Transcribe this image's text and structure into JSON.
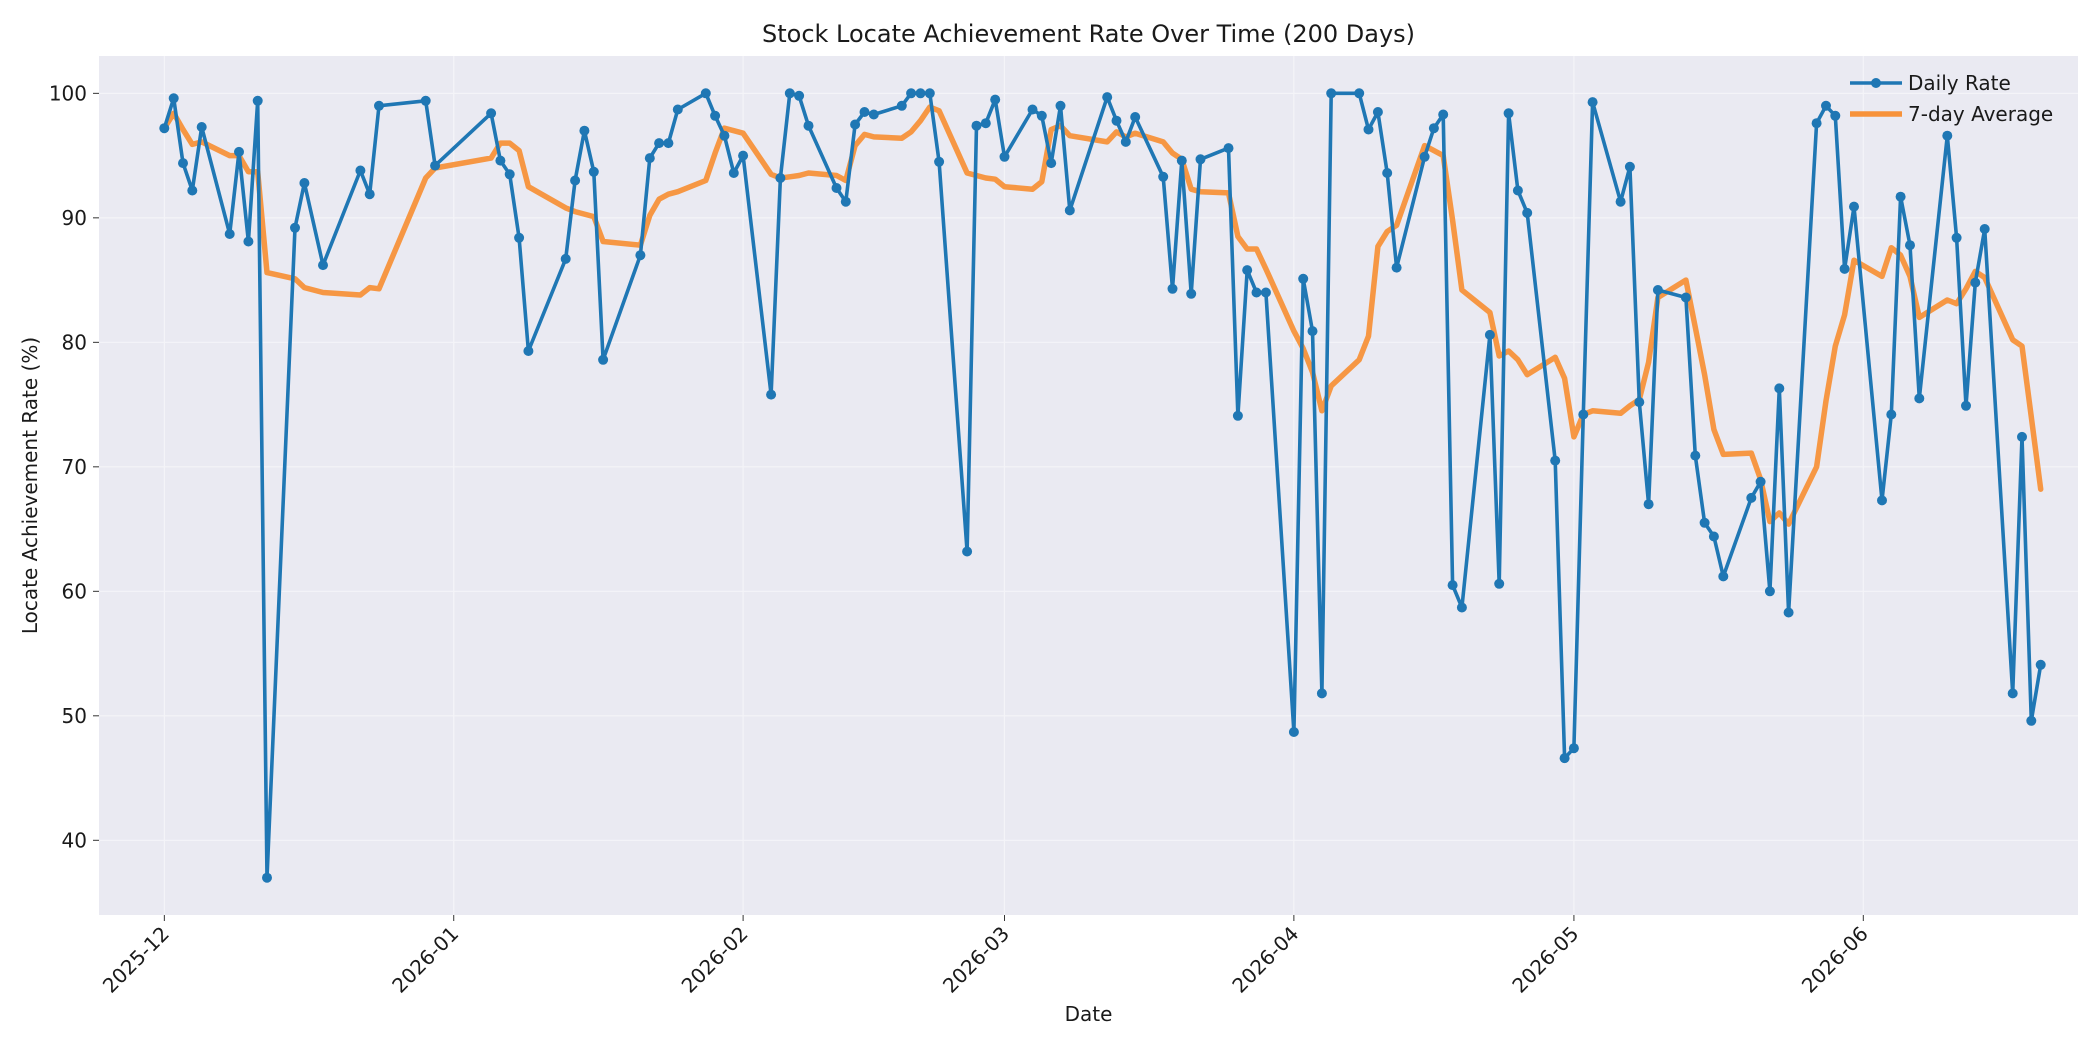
{
  "chart_data": {
    "type": "line",
    "title": "Stock Locate Achievement Rate Over Time (200 Days)",
    "xlabel": "Date",
    "ylabel": "Locate Achievement Rate (%)",
    "ylim": [
      34,
      103
    ],
    "yticks": [
      40,
      50,
      60,
      70,
      80,
      90,
      100
    ],
    "xlim": [
      "2025-11-24",
      "2026-06-24"
    ],
    "xticks": [
      {
        "date": "2025-12-01",
        "label": "2025-12"
      },
      {
        "date": "2026-01-01",
        "label": "2026-01"
      },
      {
        "date": "2026-02-01",
        "label": "2026-02"
      },
      {
        "date": "2026-03-01",
        "label": "2026-03"
      },
      {
        "date": "2026-04-01",
        "label": "2026-04"
      },
      {
        "date": "2026-05-01",
        "label": "2026-05"
      },
      {
        "date": "2026-06-01",
        "label": "2026-06"
      }
    ],
    "grid": true,
    "legend_position": "top-right",
    "colors": {
      "background": "#eaeaf2",
      "grid": "#f4f4f8",
      "daily": "#1f77b4",
      "average": "#f7923a"
    },
    "series": [
      {
        "name": "Daily Rate",
        "style": "line-with-markers",
        "points": [
          [
            "2025-12-01",
            97.2
          ],
          [
            "2025-12-02",
            99.6
          ],
          [
            "2025-12-03",
            94.4
          ],
          [
            "2025-12-04",
            92.2
          ],
          [
            "2025-12-05",
            97.3
          ],
          [
            "2025-12-08",
            88.7
          ],
          [
            "2025-12-09",
            95.3
          ],
          [
            "2025-12-10",
            88.1
          ],
          [
            "2025-12-11",
            99.4
          ],
          [
            "2025-12-12",
            37.0
          ],
          [
            "2025-12-15",
            89.2
          ],
          [
            "2025-12-16",
            92.8
          ],
          [
            "2025-12-18",
            86.2
          ],
          [
            "2025-12-22",
            93.8
          ],
          [
            "2025-12-23",
            91.9
          ],
          [
            "2025-12-24",
            99.0
          ],
          [
            "2025-12-29",
            99.4
          ],
          [
            "2025-12-30",
            94.2
          ],
          [
            "2026-01-05",
            98.4
          ],
          [
            "2026-01-06",
            94.6
          ],
          [
            "2026-01-07",
            93.5
          ],
          [
            "2026-01-08",
            88.4
          ],
          [
            "2026-01-09",
            79.3
          ],
          [
            "2026-01-13",
            86.7
          ],
          [
            "2026-01-14",
            93.0
          ],
          [
            "2026-01-15",
            97.0
          ],
          [
            "2026-01-16",
            93.7
          ],
          [
            "2026-01-17",
            78.6
          ],
          [
            "2026-01-21",
            87.0
          ],
          [
            "2026-01-22",
            94.8
          ],
          [
            "2026-01-23",
            96.0
          ],
          [
            "2026-01-24",
            96.0
          ],
          [
            "2026-01-25",
            98.7
          ],
          [
            "2026-01-28",
            100.0
          ],
          [
            "2026-01-29",
            98.2
          ],
          [
            "2026-01-30",
            96.6
          ],
          [
            "2026-01-31",
            93.6
          ],
          [
            "2026-02-01",
            95.0
          ],
          [
            "2026-02-04",
            75.8
          ],
          [
            "2026-02-05",
            93.2
          ],
          [
            "2026-02-06",
            100.0
          ],
          [
            "2026-02-07",
            99.8
          ],
          [
            "2026-02-08",
            97.4
          ],
          [
            "2026-02-11",
            92.4
          ],
          [
            "2026-02-12",
            91.3
          ],
          [
            "2026-02-13",
            97.5
          ],
          [
            "2026-02-14",
            98.5
          ],
          [
            "2026-02-15",
            98.3
          ],
          [
            "2026-02-18",
            99.0
          ],
          [
            "2026-02-19",
            100.0
          ],
          [
            "2026-02-20",
            100.0
          ],
          [
            "2026-02-21",
            100.0
          ],
          [
            "2026-02-22",
            94.5
          ],
          [
            "2026-02-25",
            63.2
          ],
          [
            "2026-02-26",
            97.4
          ],
          [
            "2026-02-27",
            97.6
          ],
          [
            "2026-02-28",
            99.5
          ],
          [
            "2026-03-01",
            94.9
          ],
          [
            "2026-03-04",
            98.7
          ],
          [
            "2026-03-05",
            98.2
          ],
          [
            "2026-03-06",
            94.4
          ],
          [
            "2026-03-07",
            99.0
          ],
          [
            "2026-03-08",
            90.6
          ],
          [
            "2026-03-12",
            99.7
          ],
          [
            "2026-03-13",
            97.8
          ],
          [
            "2026-03-14",
            96.1
          ],
          [
            "2026-03-15",
            98.1
          ],
          [
            "2026-03-18",
            93.3
          ],
          [
            "2026-03-19",
            84.3
          ],
          [
            "2026-03-20",
            94.6
          ],
          [
            "2026-03-21",
            83.9
          ],
          [
            "2026-03-22",
            94.7
          ],
          [
            "2026-03-25",
            95.6
          ],
          [
            "2026-03-26",
            74.1
          ],
          [
            "2026-03-27",
            85.8
          ],
          [
            "2026-03-28",
            84.0
          ],
          [
            "2026-03-29",
            84.0
          ],
          [
            "2026-04-01",
            48.7
          ],
          [
            "2026-04-02",
            85.1
          ],
          [
            "2026-04-03",
            80.9
          ],
          [
            "2026-04-04",
            51.8
          ],
          [
            "2026-04-05",
            100.0
          ],
          [
            "2026-04-08",
            100.0
          ],
          [
            "2026-04-09",
            97.1
          ],
          [
            "2026-04-10",
            98.5
          ],
          [
            "2026-04-11",
            93.6
          ],
          [
            "2026-04-12",
            86.0
          ],
          [
            "2026-04-15",
            94.9
          ],
          [
            "2026-04-16",
            97.2
          ],
          [
            "2026-04-17",
            98.3
          ],
          [
            "2026-04-18",
            60.5
          ],
          [
            "2026-04-19",
            58.7
          ],
          [
            "2026-04-22",
            80.6
          ],
          [
            "2026-04-23",
            60.6
          ],
          [
            "2026-04-24",
            98.4
          ],
          [
            "2026-04-25",
            92.2
          ],
          [
            "2026-04-26",
            90.4
          ],
          [
            "2026-04-29",
            70.5
          ],
          [
            "2026-04-30",
            46.6
          ],
          [
            "2026-05-01",
            47.4
          ],
          [
            "2026-05-02",
            74.2
          ],
          [
            "2026-05-03",
            99.3
          ],
          [
            "2026-05-06",
            91.3
          ],
          [
            "2026-05-07",
            94.1
          ],
          [
            "2026-05-08",
            75.2
          ],
          [
            "2026-05-09",
            67.0
          ],
          [
            "2026-05-10",
            84.2
          ],
          [
            "2026-05-13",
            83.6
          ],
          [
            "2026-05-14",
            70.9
          ],
          [
            "2026-05-15",
            65.5
          ],
          [
            "2026-05-16",
            64.4
          ],
          [
            "2026-05-17",
            61.2
          ],
          [
            "2026-05-20",
            67.5
          ],
          [
            "2026-05-21",
            68.8
          ],
          [
            "2026-05-22",
            60.0
          ],
          [
            "2026-05-23",
            76.3
          ],
          [
            "2026-05-24",
            58.3
          ],
          [
            "2026-05-27",
            97.6
          ],
          [
            "2026-05-28",
            99.0
          ],
          [
            "2026-05-29",
            98.2
          ],
          [
            "2026-05-30",
            85.9
          ],
          [
            "2026-05-31",
            90.9
          ],
          [
            "2026-06-03",
            67.3
          ],
          [
            "2026-06-04",
            74.2
          ],
          [
            "2026-06-05",
            91.7
          ],
          [
            "2026-06-06",
            87.8
          ],
          [
            "2026-06-07",
            75.5
          ],
          [
            "2026-06-10",
            96.6
          ],
          [
            "2026-06-11",
            88.4
          ],
          [
            "2026-06-12",
            74.9
          ],
          [
            "2026-06-13",
            84.8
          ],
          [
            "2026-06-14",
            89.1
          ],
          [
            "2026-06-17",
            51.8
          ],
          [
            "2026-06-18",
            72.4
          ],
          [
            "2026-06-19",
            49.6
          ],
          [
            "2026-06-20",
            54.1
          ]
        ]
      },
      {
        "name": "7-day Average",
        "style": "line",
        "points": [
          [
            "2025-12-01",
            97.2
          ],
          [
            "2025-12-02",
            98.4
          ],
          [
            "2025-12-03",
            97.1
          ],
          [
            "2025-12-04",
            95.9
          ],
          [
            "2025-12-05",
            96.1
          ],
          [
            "2025-12-08",
            95.0
          ],
          [
            "2025-12-09",
            95.0
          ],
          [
            "2025-12-10",
            93.7
          ],
          [
            "2025-12-11",
            93.7
          ],
          [
            "2025-12-12",
            85.6
          ],
          [
            "2025-12-15",
            85.1
          ],
          [
            "2025-12-16",
            84.4
          ],
          [
            "2025-12-18",
            84.0
          ],
          [
            "2025-12-22",
            83.8
          ],
          [
            "2025-12-23",
            84.4
          ],
          [
            "2025-12-24",
            84.3
          ],
          [
            "2025-12-29",
            93.2
          ],
          [
            "2025-12-30",
            94.0
          ],
          [
            "2026-01-05",
            94.8
          ],
          [
            "2026-01-06",
            96.0
          ],
          [
            "2026-01-07",
            96.0
          ],
          [
            "2026-01-08",
            95.4
          ],
          [
            "2026-01-09",
            92.5
          ],
          [
            "2026-01-13",
            90.8
          ],
          [
            "2026-01-14",
            90.5
          ],
          [
            "2026-01-15",
            90.3
          ],
          [
            "2026-01-16",
            90.1
          ],
          [
            "2026-01-17",
            88.1
          ],
          [
            "2026-01-21",
            87.8
          ],
          [
            "2026-01-22",
            90.2
          ],
          [
            "2026-01-23",
            91.5
          ],
          [
            "2026-01-24",
            91.9
          ],
          [
            "2026-01-25",
            92.1
          ],
          [
            "2026-01-28",
            93.0
          ],
          [
            "2026-01-29",
            95.2
          ],
          [
            "2026-01-30",
            97.2
          ],
          [
            "2026-01-31",
            97.0
          ],
          [
            "2026-02-01",
            96.8
          ],
          [
            "2026-02-04",
            93.5
          ],
          [
            "2026-02-05",
            93.2
          ],
          [
            "2026-02-06",
            93.3
          ],
          [
            "2026-02-07",
            93.4
          ],
          [
            "2026-02-08",
            93.6
          ],
          [
            "2026-02-11",
            93.4
          ],
          [
            "2026-02-12",
            93.0
          ],
          [
            "2026-02-13",
            95.8
          ],
          [
            "2026-02-14",
            96.7
          ],
          [
            "2026-02-15",
            96.5
          ],
          [
            "2026-02-18",
            96.4
          ],
          [
            "2026-02-19",
            96.9
          ],
          [
            "2026-02-20",
            97.8
          ],
          [
            "2026-02-21",
            98.9
          ],
          [
            "2026-02-22",
            98.6
          ],
          [
            "2026-02-25",
            93.6
          ],
          [
            "2026-02-26",
            93.4
          ],
          [
            "2026-02-27",
            93.2
          ],
          [
            "2026-02-28",
            93.1
          ],
          [
            "2026-03-01",
            92.5
          ],
          [
            "2026-03-04",
            92.3
          ],
          [
            "2026-03-05",
            92.9
          ],
          [
            "2026-03-06",
            97.1
          ],
          [
            "2026-03-07",
            97.4
          ],
          [
            "2026-03-08",
            96.6
          ],
          [
            "2026-03-12",
            96.1
          ],
          [
            "2026-03-13",
            96.9
          ],
          [
            "2026-03-14",
            96.5
          ],
          [
            "2026-03-15",
            96.8
          ],
          [
            "2026-03-18",
            96.1
          ],
          [
            "2026-03-19",
            95.2
          ],
          [
            "2026-03-20",
            94.7
          ],
          [
            "2026-03-21",
            92.3
          ],
          [
            "2026-03-22",
            92.1
          ],
          [
            "2026-03-25",
            92.0
          ],
          [
            "2026-03-26",
            88.5
          ],
          [
            "2026-03-27",
            87.5
          ],
          [
            "2026-03-28",
            87.5
          ],
          [
            "2026-03-29",
            85.9
          ],
          [
            "2026-04-01",
            80.9
          ],
          [
            "2026-04-02",
            79.5
          ],
          [
            "2026-04-03",
            77.6
          ],
          [
            "2026-04-04",
            74.5
          ],
          [
            "2026-04-05",
            76.5
          ],
          [
            "2026-04-08",
            78.6
          ],
          [
            "2026-04-09",
            80.5
          ],
          [
            "2026-04-10",
            87.7
          ],
          [
            "2026-04-11",
            88.9
          ],
          [
            "2026-04-12",
            89.4
          ],
          [
            "2026-04-15",
            95.8
          ],
          [
            "2026-04-16",
            95.4
          ],
          [
            "2026-04-17",
            95.0
          ],
          [
            "2026-04-18",
            89.8
          ],
          [
            "2026-04-19",
            84.2
          ],
          [
            "2026-04-22",
            82.4
          ],
          [
            "2026-04-23",
            78.9
          ],
          [
            "2026-04-24",
            79.3
          ],
          [
            "2026-04-25",
            78.6
          ],
          [
            "2026-04-26",
            77.4
          ],
          [
            "2026-04-29",
            78.8
          ],
          [
            "2026-04-30",
            77.1
          ],
          [
            "2026-05-01",
            72.4
          ],
          [
            "2026-05-02",
            74.2
          ],
          [
            "2026-05-03",
            74.5
          ],
          [
            "2026-05-06",
            74.3
          ],
          [
            "2026-05-07",
            74.9
          ],
          [
            "2026-05-08",
            75.4
          ],
          [
            "2026-05-09",
            78.4
          ],
          [
            "2026-05-10",
            83.6
          ],
          [
            "2026-05-13",
            85.0
          ],
          [
            "2026-05-14",
            81.2
          ],
          [
            "2026-05-15",
            77.4
          ],
          [
            "2026-05-16",
            73.0
          ],
          [
            "2026-05-17",
            71.0
          ],
          [
            "2026-05-20",
            71.1
          ],
          [
            "2026-05-21",
            69.0
          ],
          [
            "2026-05-22",
            65.6
          ],
          [
            "2026-05-23",
            66.3
          ],
          [
            "2026-05-24",
            65.4
          ],
          [
            "2026-05-27",
            70.0
          ],
          [
            "2026-05-28",
            75.3
          ],
          [
            "2026-05-29",
            79.7
          ],
          [
            "2026-05-30",
            82.2
          ],
          [
            "2026-05-31",
            86.6
          ],
          [
            "2026-06-03",
            85.3
          ],
          [
            "2026-06-04",
            87.6
          ],
          [
            "2026-06-05",
            87.0
          ],
          [
            "2026-06-06",
            85.3
          ],
          [
            "2026-06-07",
            82.0
          ],
          [
            "2026-06-10",
            83.4
          ],
          [
            "2026-06-11",
            83.1
          ],
          [
            "2026-06-12",
            84.3
          ],
          [
            "2026-06-13",
            85.7
          ],
          [
            "2026-06-14",
            85.2
          ],
          [
            "2026-06-17",
            80.2
          ],
          [
            "2026-06-18",
            79.7
          ],
          [
            "2026-06-19",
            74.0
          ],
          [
            "2026-06-20",
            68.2
          ]
        ]
      }
    ]
  }
}
